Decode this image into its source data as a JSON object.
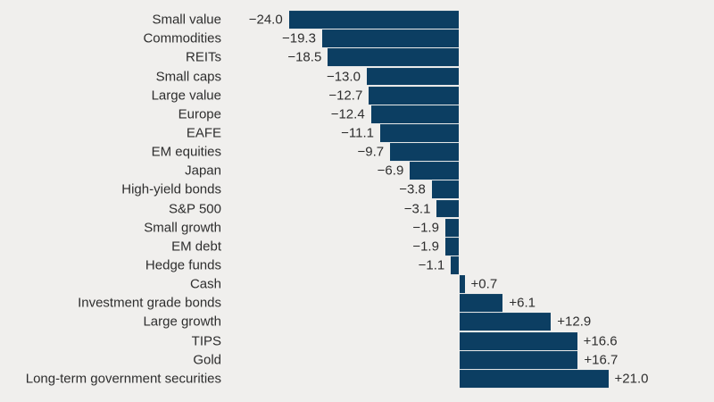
{
  "chart_data": {
    "type": "bar",
    "orientation": "horizontal",
    "title": "",
    "xlabel": "",
    "ylabel": "",
    "xlim": [
      -26,
      24
    ],
    "grid": false,
    "legend": "none",
    "axis_lines": "none",
    "categories": [
      "Small value",
      "Commodities",
      "REITs",
      "Small caps",
      "Large value",
      "Europe",
      "EAFE",
      "EM equities",
      "Japan",
      "High-yield bonds",
      "S&P 500",
      "Small growth",
      "EM debt",
      "Hedge funds",
      "Cash",
      "Investment grade bonds",
      "Large growth",
      "TIPS",
      "Gold",
      "Long-term government securities"
    ],
    "values": [
      -24.0,
      -19.3,
      -18.5,
      -13.0,
      -12.7,
      -12.4,
      -11.1,
      -9.7,
      -6.9,
      -3.8,
      -3.1,
      -1.9,
      -1.9,
      -1.1,
      0.7,
      6.1,
      12.9,
      16.6,
      16.7,
      21.0
    ],
    "value_labels": [
      "−24.0",
      "−19.3",
      "−18.5",
      "−13.0",
      "−12.7",
      "−12.4",
      "−11.1",
      "−9.7",
      "−6.9",
      "−3.8",
      "−3.1",
      "−1.9",
      "−1.9",
      "−1.1",
      "+0.7",
      "+6.1",
      "+12.9",
      "+16.6",
      "+16.7",
      "+21.0"
    ],
    "colors": {
      "bar": "#0c3e62",
      "background": "#f0efed",
      "text": "#2e2e2e"
    }
  }
}
